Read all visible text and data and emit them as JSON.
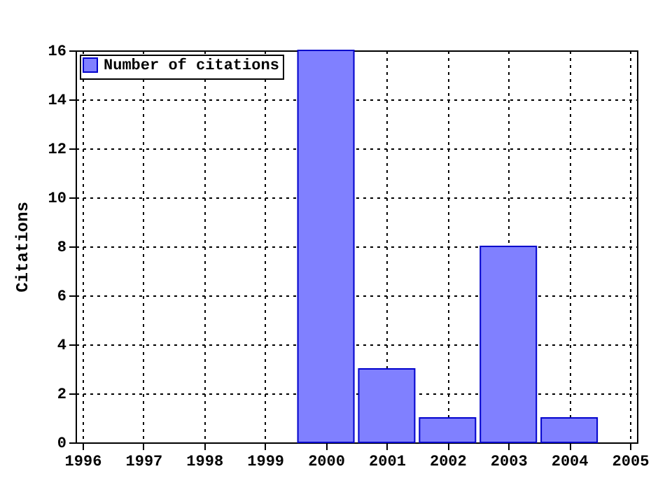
{
  "chart_data": {
    "type": "bar",
    "ylabel": "Citations",
    "x": [
      2000,
      2001,
      2002,
      2003,
      2004
    ],
    "series": [
      {
        "name": "Number of citations",
        "color": "#8080ff",
        "values": [
          16,
          3,
          1,
          8,
          1
        ]
      }
    ],
    "xlim": [
      1996,
      2005
    ],
    "xticks": [
      1996,
      1997,
      1998,
      1999,
      2000,
      2001,
      2002,
      2003,
      2004,
      2005
    ],
    "ylim": [
      0,
      16
    ],
    "yticks": [
      0,
      2,
      4,
      6,
      8,
      10,
      12,
      14,
      16
    ],
    "grid": true,
    "legend": "top left"
  }
}
